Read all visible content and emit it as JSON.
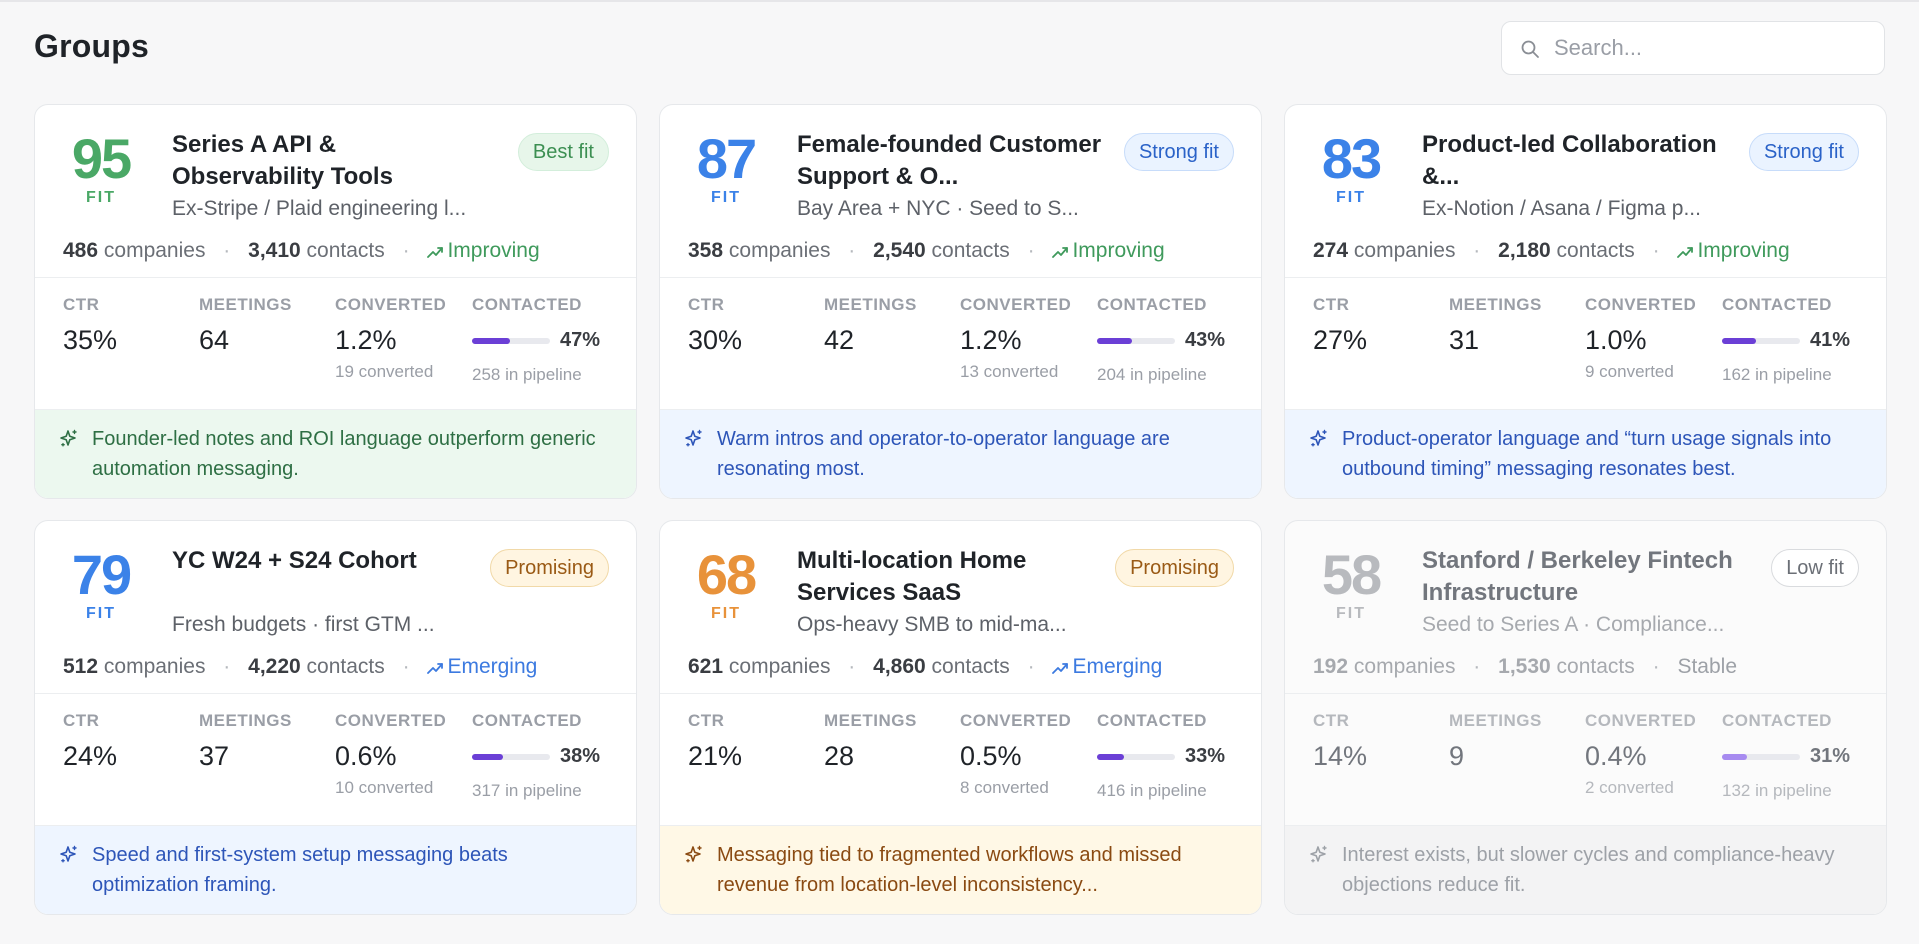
{
  "page": {
    "title": "Groups"
  },
  "search": {
    "placeholder": "Search..."
  },
  "metric_labels": {
    "ctr": "CTR",
    "meetings": "MEETINGS",
    "converted": "CONVERTED",
    "contacted": "CONTACTED"
  },
  "colors": {
    "green": "#4aa866",
    "blue": "#3b82e8",
    "orange": "#e8923a",
    "gray": "#b8babe",
    "progress": "#6b3fd6"
  },
  "cards": [
    {
      "score": "95",
      "fit_label": "FIT",
      "score_color": "green",
      "name": "Series A API & Observability Tools",
      "subtitle": "Ex-Stripe / Plaid engineering l...",
      "badge": "Best fit",
      "badge_style": "best",
      "companies": "486",
      "companies_label": "companies",
      "contacts": "3,410",
      "contacts_label": "contacts",
      "trend": "Improving",
      "trend_style": "green",
      "trend_icon": "trend-up-icon",
      "ctr": "35%",
      "meetings": "64",
      "converted": "1.2%",
      "converted_note": "19 converted",
      "contacted_pct": "47%",
      "contacted_fraction": 0.47,
      "pipeline_note": "258 in pipeline",
      "insight": "Founder-led notes and ROI language outperform generic automation messaging.",
      "insight_style": "green"
    },
    {
      "score": "87",
      "fit_label": "FIT",
      "score_color": "blue",
      "name": "Female-founded Customer Support & O...",
      "subtitle": "Bay Area + NYC · Seed to S...",
      "badge": "Strong fit",
      "badge_style": "strong",
      "companies": "358",
      "companies_label": "companies",
      "contacts": "2,540",
      "contacts_label": "contacts",
      "trend": "Improving",
      "trend_style": "green",
      "trend_icon": "trend-up-icon",
      "ctr": "30%",
      "meetings": "42",
      "converted": "1.2%",
      "converted_note": "13 converted",
      "contacted_pct": "43%",
      "contacted_fraction": 0.43,
      "pipeline_note": "204 in pipeline",
      "insight": "Warm intros and operator-to-operator language are resonating most.",
      "insight_style": "blue"
    },
    {
      "score": "83",
      "fit_label": "FIT",
      "score_color": "blue",
      "name": "Product-led Collaboration &...",
      "subtitle": "Ex-Notion / Asana / Figma p...",
      "badge": "Strong fit",
      "badge_style": "strong",
      "companies": "274",
      "companies_label": "companies",
      "contacts": "2,180",
      "contacts_label": "contacts",
      "trend": "Improving",
      "trend_style": "green",
      "trend_icon": "trend-up-icon",
      "ctr": "27%",
      "meetings": "31",
      "converted": "1.0%",
      "converted_note": "9 converted",
      "contacted_pct": "41%",
      "contacted_fraction": 0.41,
      "pipeline_note": "162 in pipeline",
      "insight": "Product-operator language and “turn usage signals into outbound timing” messaging resonates best.",
      "insight_style": "blue"
    },
    {
      "score": "79",
      "fit_label": "FIT",
      "score_color": "blue",
      "name": "YC W24 + S24 Cohort",
      "subtitle": "Fresh budgets · first GTM ...",
      "badge": "Promising",
      "badge_style": "prom",
      "companies": "512",
      "companies_label": "companies",
      "contacts": "4,220",
      "contacts_label": "contacts",
      "trend": "Emerging",
      "trend_style": "blue",
      "trend_icon": "trend-up-icon",
      "ctr": "24%",
      "meetings": "37",
      "converted": "0.6%",
      "converted_note": "10 converted",
      "contacted_pct": "38%",
      "contacted_fraction": 0.38,
      "pipeline_note": "317 in pipeline",
      "insight": "Speed and first-system setup messaging beats optimization framing.",
      "insight_style": "blue"
    },
    {
      "score": "68",
      "fit_label": "FIT",
      "score_color": "orange",
      "name": "Multi-location Home Services SaaS",
      "subtitle": "Ops-heavy SMB to mid-ma...",
      "badge": "Promising",
      "badge_style": "prom",
      "companies": "621",
      "companies_label": "companies",
      "contacts": "4,860",
      "contacts_label": "contacts",
      "trend": "Emerging",
      "trend_style": "blue",
      "trend_icon": "trend-up-icon",
      "ctr": "21%",
      "meetings": "28",
      "converted": "0.5%",
      "converted_note": "8 converted",
      "contacted_pct": "33%",
      "contacted_fraction": 0.33,
      "pipeline_note": "416 in pipeline",
      "insight": "Messaging tied to fragmented workflows and missed revenue from location-level inconsistency...",
      "insight_style": "amber"
    },
    {
      "score": "58",
      "fit_label": "FIT",
      "score_color": "gray",
      "name": "Stanford / Berkeley Fintech Infrastructure",
      "subtitle": "Seed to Series A · Compliance...",
      "badge": "Low fit",
      "badge_style": "low",
      "companies": "192",
      "companies_label": "companies",
      "contacts": "1,530",
      "contacts_label": "contacts",
      "trend": "Stable",
      "trend_style": "gray",
      "trend_icon": "",
      "ctr": "14%",
      "meetings": "9",
      "converted": "0.4%",
      "converted_note": "2 converted",
      "contacted_pct": "31%",
      "contacted_fraction": 0.31,
      "pipeline_note": "132 in pipeline",
      "insight": "Interest exists, but slower cycles and compliance-heavy objections reduce fit.",
      "insight_style": "gray"
    }
  ]
}
